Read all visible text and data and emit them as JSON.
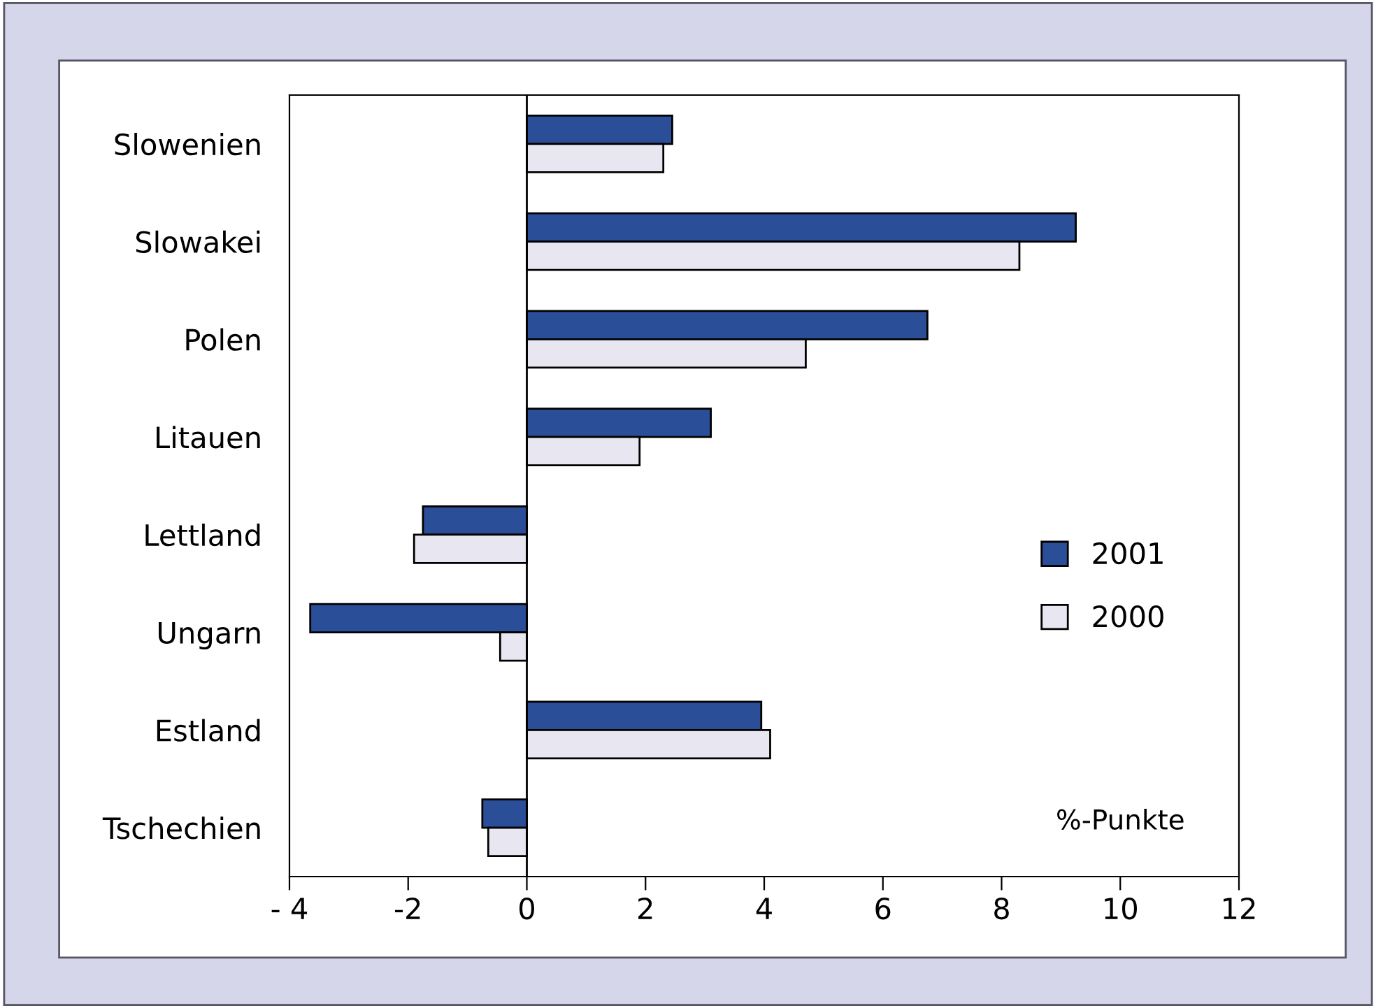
{
  "chart_data": {
    "type": "bar",
    "orientation": "horizontal",
    "categories": [
      "Slowenien",
      "Slowakei",
      "Polen",
      "Litauen",
      "Lettland",
      "Ungarn",
      "Estland",
      "Tschechien"
    ],
    "series": [
      {
        "name": "2001",
        "color": "#2a4f98",
        "values": [
          2.45,
          9.25,
          6.75,
          3.1,
          -1.75,
          -3.65,
          3.95,
          -0.75
        ]
      },
      {
        "name": "2000",
        "color": "#e8e6f0",
        "values": [
          2.3,
          8.3,
          4.7,
          1.9,
          -1.9,
          -0.45,
          4.1,
          -0.65
        ]
      }
    ],
    "xlim": [
      -4,
      12
    ],
    "xticks": [
      {
        "value": -4,
        "label": "- 4"
      },
      -2,
      0,
      2,
      4,
      6,
      8,
      10,
      12
    ],
    "ref_lines": [
      {
        "axis": "x",
        "value": 0,
        "color": "#000000"
      }
    ],
    "annotations": [
      "%-Punkte"
    ],
    "legend": "right",
    "grid": false
  }
}
